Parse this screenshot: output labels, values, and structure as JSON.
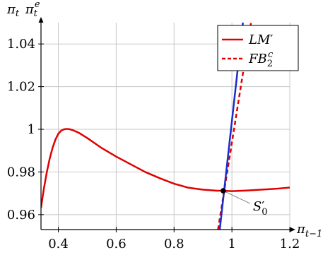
{
  "chart_data": {
    "type": "line",
    "xlabel": "π_{t−1}",
    "ylabel": "π_t  π_t^e",
    "xlim": [
      0.34,
      1.2
    ],
    "ylim": [
      0.953,
      1.05
    ],
    "grid": true,
    "legend_placement": "top-right",
    "xticks": [
      0.4,
      0.6,
      0.8,
      1.0,
      1.2
    ],
    "xtick_labels": [
      "0.4",
      "0.6",
      "0.8",
      "1",
      "1.2"
    ],
    "yticks": [
      0.96,
      0.98,
      1.0,
      1.02,
      1.04
    ],
    "ytick_labels": [
      "0.96",
      "0.98",
      "1",
      "1.02",
      "1.04"
    ],
    "series": [
      {
        "name": "LM′",
        "style": "solid",
        "color": "#e00000",
        "points": [
          [
            0.34,
            0.9632
          ],
          [
            0.35,
            0.9722
          ],
          [
            0.36,
            0.9798
          ],
          [
            0.37,
            0.9862
          ],
          [
            0.38,
            0.9913
          ],
          [
            0.39,
            0.9952
          ],
          [
            0.4,
            0.9979
          ],
          [
            0.41,
            0.9994
          ],
          [
            0.42,
            1.0
          ],
          [
            0.43,
            1.0002
          ],
          [
            0.44,
            1.0
          ],
          [
            0.45,
            0.9996
          ],
          [
            0.47,
            0.9984
          ],
          [
            0.5,
            0.9959
          ],
          [
            0.55,
            0.9912
          ],
          [
            0.6,
            0.9872
          ],
          [
            0.65,
            0.9836
          ],
          [
            0.7,
            0.98
          ],
          [
            0.75,
            0.9771
          ],
          [
            0.8,
            0.9745
          ],
          [
            0.85,
            0.9726
          ],
          [
            0.9,
            0.9717
          ],
          [
            0.95,
            0.9712
          ],
          [
            0.97,
            0.9712
          ],
          [
            1.0,
            0.971
          ],
          [
            1.05,
            0.9713
          ],
          [
            1.1,
            0.9717
          ],
          [
            1.15,
            0.9721
          ],
          [
            1.2,
            0.9727
          ]
        ]
      },
      {
        "name": "FB_2^c",
        "style": "dashed",
        "color": "#e00000",
        "points": [
          [
            0.952,
            0.953
          ],
          [
            1.066,
            1.05
          ]
        ]
      },
      {
        "name": "",
        "style": "solid",
        "color": "#1a2dcf",
        "points": [
          [
            0.958,
            0.953
          ],
          [
            1.038,
            1.05
          ]
        ]
      }
    ],
    "point": {
      "label": "S′_0",
      "x": 0.97,
      "y": 0.9712
    }
  },
  "colors": {
    "grid": "#c8c8c8",
    "axis": "#000000",
    "red": "#e00000",
    "blue": "#1a2dcf"
  }
}
